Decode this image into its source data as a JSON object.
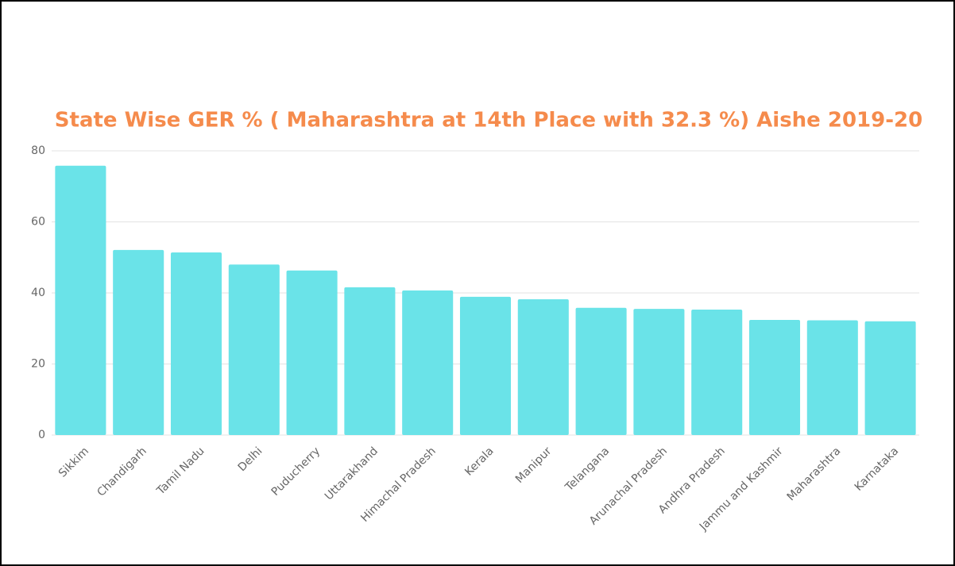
{
  "chart_data": {
    "type": "bar",
    "title": "State Wise GER % ( Maharashtra at 14th Place with 32.3 %) Aishe 2019-20",
    "categories": [
      "Sikkim",
      "Chandigarh",
      "Tamil Nadu",
      "Delhi",
      "Puducherry",
      "Uttarakhand",
      "Himachal Pradesh",
      "Kerala",
      "Manipur",
      "Telangana",
      "Arunachal Pradesh",
      "Andhra Pradesh",
      "Jammu and Kashmir",
      "Maharashtra",
      "Karnataka"
    ],
    "values": [
      75.8,
      52.1,
      51.4,
      48.0,
      46.3,
      41.6,
      40.7,
      38.9,
      38.2,
      35.8,
      35.5,
      35.3,
      32.4,
      32.3,
      32.0
    ],
    "color": "#6ae3e8",
    "ylim": [
      0,
      80
    ],
    "yticks": [
      0,
      20,
      40,
      60,
      80
    ],
    "grid": true
  }
}
